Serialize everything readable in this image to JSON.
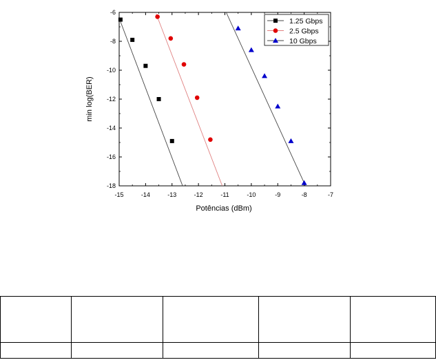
{
  "chart_data": {
    "type": "line",
    "title": "",
    "xlabel": "Potências (dBm)",
    "ylabel": "min log(BER)",
    "xlim": [
      -15,
      -7
    ],
    "ylim": [
      -18,
      -6
    ],
    "xticks": [
      -15,
      -14,
      -13,
      -12,
      -11,
      -10,
      -9,
      -8,
      -7
    ],
    "yticks": [
      -6,
      -8,
      -10,
      -12,
      -14,
      -16,
      -18
    ],
    "grid": false,
    "legend_position": "top-right",
    "series": [
      {
        "name": "1.25 Gbps",
        "marker": "square",
        "color": "#000000",
        "line_color": "#444444",
        "points": [
          [
            -14.95,
            -6.5
          ],
          [
            -14.5,
            -7.9
          ],
          [
            -14.0,
            -9.7
          ],
          [
            -13.5,
            -12.0
          ],
          [
            -13.0,
            -14.9
          ]
        ],
        "fit": [
          [
            -15.0,
            -6.4
          ],
          [
            -12.6,
            -18.0
          ]
        ]
      },
      {
        "name": "2.5 Gbps",
        "marker": "circle",
        "color": "#e00000",
        "line_color": "#e08080",
        "points": [
          [
            -13.55,
            -6.3
          ],
          [
            -13.05,
            -7.8
          ],
          [
            -12.55,
            -9.6
          ],
          [
            -12.05,
            -11.9
          ],
          [
            -11.55,
            -14.8
          ]
        ],
        "fit": [
          [
            -13.6,
            -6.1
          ],
          [
            -11.1,
            -18.0
          ]
        ]
      },
      {
        "name": "10 Gbps",
        "marker": "triangle",
        "color": "#0000cc",
        "line_color": "#444444",
        "points": [
          [
            -10.5,
            -7.1
          ],
          [
            -10.0,
            -8.6
          ],
          [
            -9.5,
            -10.4
          ],
          [
            -9.0,
            -12.5
          ],
          [
            -8.5,
            -14.9
          ],
          [
            -8.0,
            -17.8
          ]
        ],
        "fit": [
          [
            -10.95,
            -6.0
          ],
          [
            -7.95,
            -18.0
          ]
        ]
      }
    ]
  },
  "table": {
    "rows": [
      [
        "",
        "",
        "",
        "",
        ""
      ],
      [
        "",
        "",
        "",
        "",
        ""
      ]
    ]
  }
}
